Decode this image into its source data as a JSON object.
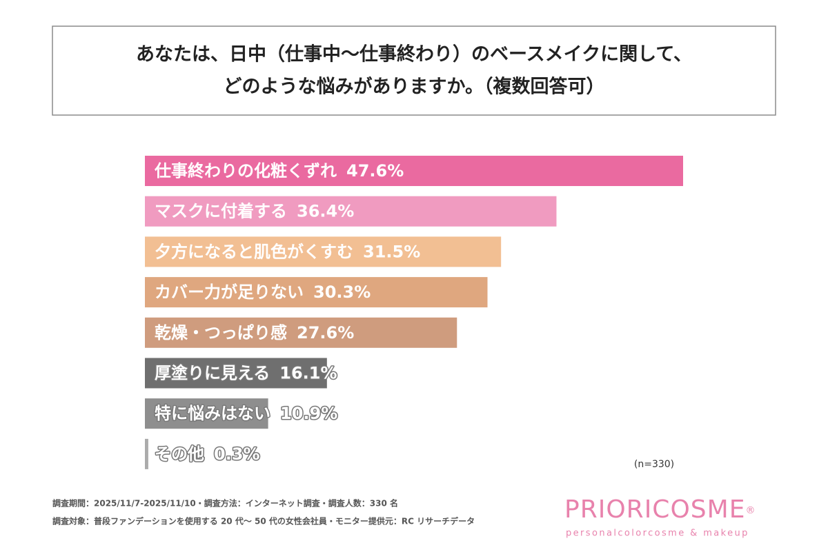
{
  "title": [
    "あなたは、日中（仕事中〜仕事終わり）のベースメイクに関して、",
    "どのような悩みがありますか。（複数回答可）"
  ],
  "chart_data": {
    "type": "bar",
    "orientation": "horizontal",
    "categories": [
      "仕事終わりの化粧くずれ",
      "マスクに付着する",
      "夕方になると肌色がくすむ",
      "カバー力が足りない",
      "乾燥・つっぱり感",
      "厚塗りに見える",
      "特に悩みはない",
      "その他"
    ],
    "values": [
      47.6,
      36.4,
      31.5,
      30.3,
      27.6,
      16.1,
      10.9,
      0.3
    ],
    "value_labels": [
      "47.6%",
      "36.4%",
      "31.5%",
      "30.3%",
      "27.6%",
      "16.1%",
      "10.9%",
      "0.3%"
    ],
    "colors": [
      "#ea6aa0",
      "#f09bc0",
      "#f2bf93",
      "#dfa77f",
      "#cf9c7e",
      "#6f6f6f",
      "#8e8e8e",
      "#ababab"
    ],
    "annotation": "(n=330)"
  },
  "notes": [
    "調査期間：2025/11/7-2025/11/10・調査方法：インターネット調査・調査人数：330 名",
    "調査対象：普段ファンデーションを使用する 20 代〜 50 代の女性会社員・モニター提供元：RC リサーチデータ"
  ],
  "logo": {
    "name": "PRIORICOSME",
    "mark": "®",
    "tagline": "personalcolorcosme & makeup"
  }
}
